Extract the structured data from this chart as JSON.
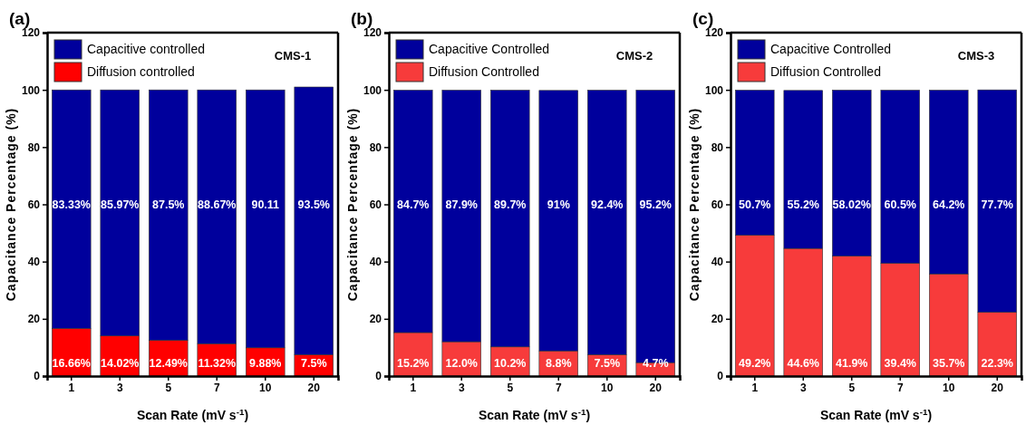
{
  "chart_data": [
    {
      "type": "bar",
      "title": "(a)",
      "xlabel": "Scan Rate (mV s$^{-1}$)",
      "ylabel": "Capacitance Percentage (%)",
      "annotations": [
        "CMS-1"
      ],
      "categories": [
        "1",
        "3",
        "5",
        "7",
        "10",
        "20"
      ],
      "stacked": true,
      "ylim": [
        0,
        120
      ],
      "yticks": [
        0,
        20,
        40,
        60,
        80,
        100,
        120
      ],
      "legend": "top left",
      "series": [
        {
          "name": "Diffusion controlled",
          "color": "#ff0000",
          "values": [
            16.66,
            14.02,
            12.49,
            11.32,
            9.88,
            7.5
          ],
          "value_labels": [
            "16.66%",
            "14.02%",
            "12.49%",
            "11.32%",
            "9.88%",
            "7.5%"
          ]
        },
        {
          "name": "Capacitive controlled",
          "color": "#00009c",
          "values": [
            83.33,
            85.97,
            87.5,
            88.67,
            90.11,
            93.5
          ],
          "value_labels": [
            "83.33%",
            "85.97%",
            "87.5%",
            "88.67%",
            "90.11",
            "93.5%"
          ]
        }
      ]
    },
    {
      "type": "bar",
      "title": "(b)",
      "xlabel": "Scan Rate (mV s$^{-1}$)",
      "ylabel": "Capacitance Percentage (%)",
      "annotations": [
        "CMS-2"
      ],
      "categories": [
        "1",
        "3",
        "5",
        "7",
        "10",
        "20"
      ],
      "stacked": true,
      "ylim": [
        0,
        120
      ],
      "yticks": [
        0,
        20,
        40,
        60,
        80,
        100,
        120
      ],
      "legend": "top left",
      "series": [
        {
          "name": "Diffusion Controlled",
          "color": "#f73b3b",
          "values": [
            15.2,
            12.0,
            10.2,
            8.8,
            7.5,
            4.7
          ],
          "value_labels": [
            "15.2%",
            "12.0%",
            "10.2%",
            "8.8%",
            "7.5%",
            "4.7%"
          ]
        },
        {
          "name": "Capacitive Controlled",
          "color": "#00009c",
          "values": [
            84.7,
            87.9,
            89.7,
            91,
            92.4,
            95.2
          ],
          "value_labels": [
            "84.7%",
            "87.9%",
            "89.7%",
            "91%",
            "92.4%",
            "95.2%"
          ]
        }
      ]
    },
    {
      "type": "bar",
      "title": "(c)",
      "xlabel": "Scan Rate (mV s$^{-1}$)",
      "ylabel": "Capacitance Percentage (%)",
      "annotations": [
        "CMS-3"
      ],
      "categories": [
        "1",
        "3",
        "5",
        "7",
        "10",
        "20"
      ],
      "stacked": true,
      "ylim": [
        0,
        120
      ],
      "yticks": [
        0,
        20,
        40,
        60,
        80,
        100,
        120
      ],
      "legend": "top left",
      "series": [
        {
          "name": "Diffusion Controlled",
          "color": "#f73b3b",
          "values": [
            49.2,
            44.6,
            41.9,
            39.4,
            35.7,
            22.3
          ],
          "value_labels": [
            "49.2%",
            "44.6%",
            "41.9%",
            "39.4%",
            "35.7%",
            "22.3%"
          ]
        },
        {
          "name": "Capacitive Controlled",
          "color": "#00009c",
          "values": [
            50.7,
            55.2,
            58.02,
            60.5,
            64.2,
            77.7
          ],
          "value_labels": [
            "50.7%",
            "55.2%",
            "58.02%",
            "60.5%",
            "64.2%",
            "77.7%"
          ]
        }
      ]
    }
  ]
}
